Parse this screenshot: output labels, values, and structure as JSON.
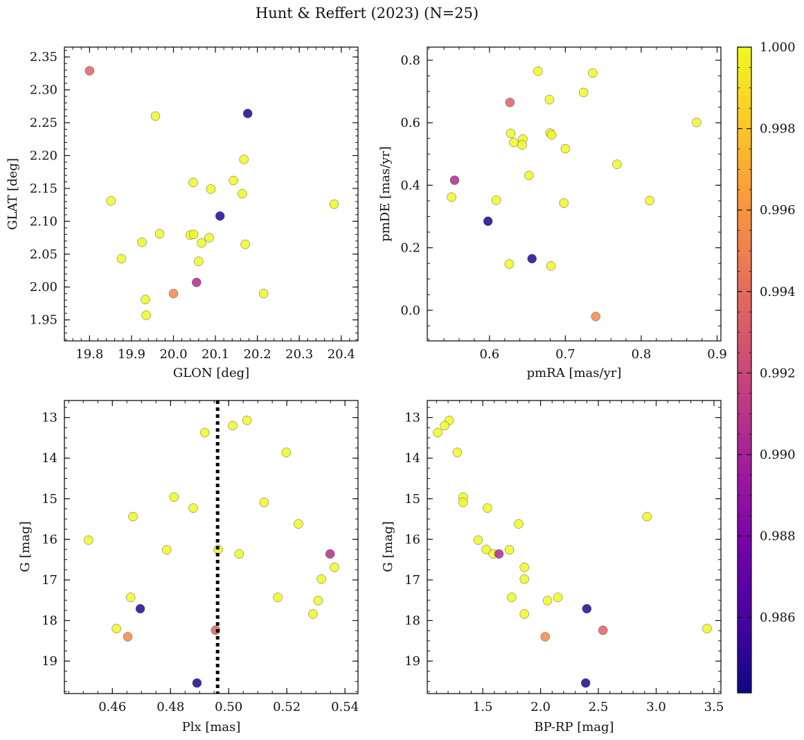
{
  "figure": {
    "title": "Hunt & Reffert (2023) (N=25)"
  },
  "colorbar": {
    "min": 0.98415,
    "max": 1.0,
    "ticks": [
      0.986,
      0.988,
      0.99,
      0.992,
      0.994,
      0.996,
      0.998,
      1.0
    ],
    "tick_labels": [
      "0.986",
      "0.988",
      "0.990",
      "0.992",
      "0.994",
      "0.996",
      "0.998",
      "1.000"
    ],
    "colormap": "plasma",
    "stops": [
      "#0d0887",
      "#46039f",
      "#7201a8",
      "#9c179e",
      "#bd3786",
      "#d8576b",
      "#ed7953",
      "#fb9f3a",
      "#fdca26",
      "#f0f921"
    ]
  },
  "chart_data": [
    {
      "id": "glon-glat",
      "type": "scatter",
      "xlabel": "GLON [deg]",
      "ylabel": "GLAT [deg]",
      "xlim": [
        19.74,
        20.44
      ],
      "ylim": [
        1.918,
        2.365
      ],
      "y_inverted": false,
      "xticks": [
        19.8,
        19.9,
        20.0,
        20.1,
        20.2,
        20.3,
        20.4
      ],
      "xtick_labels": [
        "19.8",
        "19.9",
        "20.0",
        "20.1",
        "20.2",
        "20.3",
        "20.4"
      ],
      "xminor": 0.02,
      "yticks": [
        1.95,
        2.0,
        2.05,
        2.1,
        2.15,
        2.2,
        2.25,
        2.3,
        2.35
      ],
      "ytick_labels": [
        "1.95",
        "2.00",
        "2.05",
        "2.10",
        "2.15",
        "2.20",
        "2.25",
        "2.30",
        "2.35"
      ],
      "yminor": 0.01,
      "vline": null,
      "points": [
        {
          "x": 19.8,
          "y": 2.329,
          "p": 0.9935
        },
        {
          "x": 19.957,
          "y": 2.26,
          "p": 1.0
        },
        {
          "x": 20.177,
          "y": 2.264,
          "p": 0.9845
        },
        {
          "x": 20.168,
          "y": 2.194,
          "p": 1.0
        },
        {
          "x": 19.851,
          "y": 2.131,
          "p": 1.0
        },
        {
          "x": 20.047,
          "y": 2.159,
          "p": 1.0
        },
        {
          "x": 20.089,
          "y": 2.149,
          "p": 1.0
        },
        {
          "x": 20.143,
          "y": 2.162,
          "p": 1.0
        },
        {
          "x": 20.164,
          "y": 2.142,
          "p": 1.0
        },
        {
          "x": 20.383,
          "y": 2.126,
          "p": 1.0
        },
        {
          "x": 20.111,
          "y": 2.108,
          "p": 0.9848
        },
        {
          "x": 19.967,
          "y": 2.081,
          "p": 1.0
        },
        {
          "x": 20.04,
          "y": 2.079,
          "p": 1.0
        },
        {
          "x": 20.048,
          "y": 2.08,
          "p": 1.0
        },
        {
          "x": 20.085,
          "y": 2.075,
          "p": 1.0
        },
        {
          "x": 19.925,
          "y": 2.068,
          "p": 1.0
        },
        {
          "x": 20.067,
          "y": 2.067,
          "p": 1.0
        },
        {
          "x": 20.171,
          "y": 2.065,
          "p": 1.0
        },
        {
          "x": 19.876,
          "y": 2.043,
          "p": 1.0
        },
        {
          "x": 20.06,
          "y": 2.039,
          "p": 1.0
        },
        {
          "x": 20.055,
          "y": 2.007,
          "p": 0.9905
        },
        {
          "x": 20.0,
          "y": 1.99,
          "p": 0.9955
        },
        {
          "x": 20.215,
          "y": 1.99,
          "p": 1.0
        },
        {
          "x": 19.933,
          "y": 1.981,
          "p": 1.0
        },
        {
          "x": 19.935,
          "y": 1.957,
          "p": 1.0
        }
      ]
    },
    {
      "id": "pmra-pmde",
      "type": "scatter",
      "xlabel": "pmRA [mas/yr]",
      "ylabel": "pmDE [mas/yr]",
      "xlim": [
        0.518,
        0.905
      ],
      "ylim": [
        -0.098,
        0.842
      ],
      "y_inverted": false,
      "xticks": [
        0.6,
        0.7,
        0.8,
        0.9
      ],
      "xtick_labels": [
        "0.6",
        "0.7",
        "0.8",
        "0.9"
      ],
      "xminor": 0.02,
      "yticks": [
        0.0,
        0.2,
        0.4,
        0.6,
        0.8
      ],
      "ytick_labels": [
        "0.0",
        "0.2",
        "0.4",
        "0.6",
        "0.8"
      ],
      "yminor": 0.05,
      "vline": null,
      "points": [
        {
          "x": 0.664,
          "y": 0.765,
          "p": 1.0
        },
        {
          "x": 0.736,
          "y": 0.759,
          "p": 1.0
        },
        {
          "x": 0.724,
          "y": 0.697,
          "p": 1.0
        },
        {
          "x": 0.679,
          "y": 0.674,
          "p": 1.0
        },
        {
          "x": 0.627,
          "y": 0.665,
          "p": 0.9935
        },
        {
          "x": 0.873,
          "y": 0.601,
          "p": 1.0
        },
        {
          "x": 0.628,
          "y": 0.566,
          "p": 1.0
        },
        {
          "x": 0.68,
          "y": 0.567,
          "p": 1.0
        },
        {
          "x": 0.682,
          "y": 0.561,
          "p": 1.0
        },
        {
          "x": 0.644,
          "y": 0.548,
          "p": 1.0
        },
        {
          "x": 0.632,
          "y": 0.537,
          "p": 1.0
        },
        {
          "x": 0.643,
          "y": 0.529,
          "p": 1.0
        },
        {
          "x": 0.7,
          "y": 0.517,
          "p": 1.0
        },
        {
          "x": 0.768,
          "y": 0.467,
          "p": 1.0
        },
        {
          "x": 0.652,
          "y": 0.431,
          "p": 1.0
        },
        {
          "x": 0.554,
          "y": 0.416,
          "p": 0.9905
        },
        {
          "x": 0.55,
          "y": 0.362,
          "p": 1.0
        },
        {
          "x": 0.609,
          "y": 0.352,
          "p": 1.0
        },
        {
          "x": 0.811,
          "y": 0.351,
          "p": 1.0
        },
        {
          "x": 0.698,
          "y": 0.343,
          "p": 1.0
        },
        {
          "x": 0.598,
          "y": 0.285,
          "p": 0.9845
        },
        {
          "x": 0.656,
          "y": 0.165,
          "p": 0.9848
        },
        {
          "x": 0.626,
          "y": 0.148,
          "p": 1.0
        },
        {
          "x": 0.681,
          "y": 0.142,
          "p": 1.0
        },
        {
          "x": 0.74,
          "y": -0.02,
          "p": 0.9955
        }
      ]
    },
    {
      "id": "plx-g",
      "type": "scatter",
      "xlabel": "Plx [mas]",
      "ylabel": "G [mag]",
      "xlim": [
        0.4435,
        0.5445
      ],
      "ylim": [
        12.58,
        19.8
      ],
      "y_inverted": true,
      "xticks": [
        0.46,
        0.48,
        0.5,
        0.52,
        0.54
      ],
      "xtick_labels": [
        "0.46",
        "0.48",
        "0.50",
        "0.52",
        "0.54"
      ],
      "xminor": 0.005,
      "yticks": [
        13,
        14,
        15,
        16,
        17,
        18,
        19
      ],
      "ytick_labels": [
        "13",
        "14",
        "15",
        "16",
        "17",
        "18",
        "19"
      ],
      "yminor": 0.25,
      "vline": 0.4962,
      "points": [
        {
          "x": 0.5063,
          "y": 13.07,
          "p": 1.0
        },
        {
          "x": 0.5014,
          "y": 13.2,
          "p": 1.0
        },
        {
          "x": 0.4918,
          "y": 13.37,
          "p": 1.0
        },
        {
          "x": 0.5198,
          "y": 13.86,
          "p": 1.0
        },
        {
          "x": 0.4812,
          "y": 14.96,
          "p": 1.0
        },
        {
          "x": 0.5122,
          "y": 15.09,
          "p": 1.0
        },
        {
          "x": 0.4878,
          "y": 15.23,
          "p": 1.0
        },
        {
          "x": 0.4671,
          "y": 15.44,
          "p": 1.0
        },
        {
          "x": 0.524,
          "y": 15.62,
          "p": 1.0
        },
        {
          "x": 0.4518,
          "y": 16.02,
          "p": 1.0
        },
        {
          "x": 0.4787,
          "y": 16.26,
          "p": 1.0
        },
        {
          "x": 0.4964,
          "y": 16.25,
          "p": 1.0
        },
        {
          "x": 0.5036,
          "y": 16.36,
          "p": 1.0
        },
        {
          "x": 0.5349,
          "y": 16.36,
          "p": 0.9905
        },
        {
          "x": 0.5364,
          "y": 16.69,
          "p": 1.0
        },
        {
          "x": 0.5319,
          "y": 16.98,
          "p": 1.0
        },
        {
          "x": 0.4663,
          "y": 17.43,
          "p": 1.0
        },
        {
          "x": 0.5169,
          "y": 17.43,
          "p": 1.0
        },
        {
          "x": 0.5308,
          "y": 17.51,
          "p": 1.0
        },
        {
          "x": 0.4696,
          "y": 17.71,
          "p": 0.9848
        },
        {
          "x": 0.529,
          "y": 17.84,
          "p": 1.0
        },
        {
          "x": 0.4614,
          "y": 18.2,
          "p": 1.0
        },
        {
          "x": 0.4955,
          "y": 18.24,
          "p": 0.9935
        },
        {
          "x": 0.4653,
          "y": 18.4,
          "p": 0.9955
        },
        {
          "x": 0.4891,
          "y": 19.54,
          "p": 0.9845
        }
      ]
    },
    {
      "id": "bprp-g",
      "type": "scatter",
      "xlabel": "BP-RP [mag]",
      "ylabel": "G [mag]",
      "xlim": [
        1.02,
        3.56
      ],
      "ylim": [
        12.58,
        19.8
      ],
      "y_inverted": true,
      "xticks": [
        1.5,
        2.0,
        2.5,
        3.0,
        3.5
      ],
      "xtick_labels": [
        "1.5",
        "2.0",
        "2.5",
        "3.0",
        "3.5"
      ],
      "xminor": 0.1,
      "yticks": [
        13,
        14,
        15,
        16,
        17,
        18,
        19
      ],
      "ytick_labels": [
        "13",
        "14",
        "15",
        "16",
        "17",
        "18",
        "19"
      ],
      "yminor": 0.25,
      "vline": null,
      "points": [
        {
          "x": 1.21,
          "y": 13.07,
          "p": 1.0
        },
        {
          "x": 1.17,
          "y": 13.2,
          "p": 1.0
        },
        {
          "x": 1.11,
          "y": 13.37,
          "p": 1.0
        },
        {
          "x": 1.28,
          "y": 13.86,
          "p": 1.0
        },
        {
          "x": 1.33,
          "y": 14.96,
          "p": 1.0
        },
        {
          "x": 1.33,
          "y": 15.09,
          "p": 1.0
        },
        {
          "x": 1.54,
          "y": 15.23,
          "p": 1.0
        },
        {
          "x": 2.92,
          "y": 15.44,
          "p": 1.0
        },
        {
          "x": 1.81,
          "y": 15.62,
          "p": 1.0
        },
        {
          "x": 1.46,
          "y": 16.02,
          "p": 1.0
        },
        {
          "x": 1.73,
          "y": 16.26,
          "p": 1.0
        },
        {
          "x": 1.53,
          "y": 16.25,
          "p": 1.0
        },
        {
          "x": 1.59,
          "y": 16.36,
          "p": 1.0
        },
        {
          "x": 1.64,
          "y": 16.36,
          "p": 0.9905
        },
        {
          "x": 1.86,
          "y": 16.69,
          "p": 1.0
        },
        {
          "x": 1.86,
          "y": 16.98,
          "p": 1.0
        },
        {
          "x": 1.75,
          "y": 17.43,
          "p": 1.0
        },
        {
          "x": 2.15,
          "y": 17.43,
          "p": 1.0
        },
        {
          "x": 2.06,
          "y": 17.51,
          "p": 1.0
        },
        {
          "x": 2.4,
          "y": 17.71,
          "p": 0.9848
        },
        {
          "x": 1.86,
          "y": 17.84,
          "p": 1.0
        },
        {
          "x": 3.44,
          "y": 18.2,
          "p": 1.0
        },
        {
          "x": 2.54,
          "y": 18.24,
          "p": 0.9935
        },
        {
          "x": 2.04,
          "y": 18.4,
          "p": 0.9955
        },
        {
          "x": 2.39,
          "y": 19.54,
          "p": 0.9845
        }
      ]
    }
  ]
}
